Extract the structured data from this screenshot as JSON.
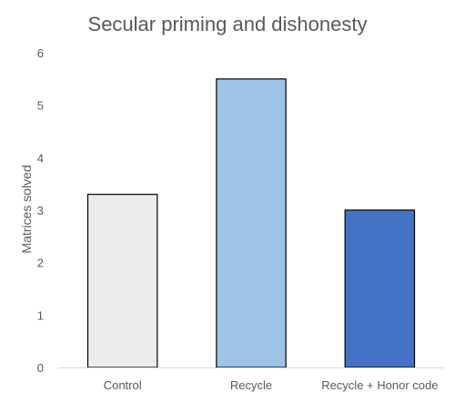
{
  "chart_data": {
    "type": "bar",
    "title": "Secular priming and dishonesty",
    "xlabel": "",
    "ylabel": "Matrices solved",
    "categories": [
      "Control",
      "Recycle",
      "Recycle + Honor code"
    ],
    "values": [
      3.3,
      5.5,
      3.0
    ],
    "colors": [
      "#ececec",
      "#9dc3e6",
      "#4472c4"
    ],
    "bar_stroke": "#000000",
    "ylim": [
      0,
      6
    ],
    "yticks": [
      "0",
      "1",
      "2",
      "3",
      "4",
      "5",
      "6"
    ],
    "grid": false,
    "legend": "none"
  }
}
